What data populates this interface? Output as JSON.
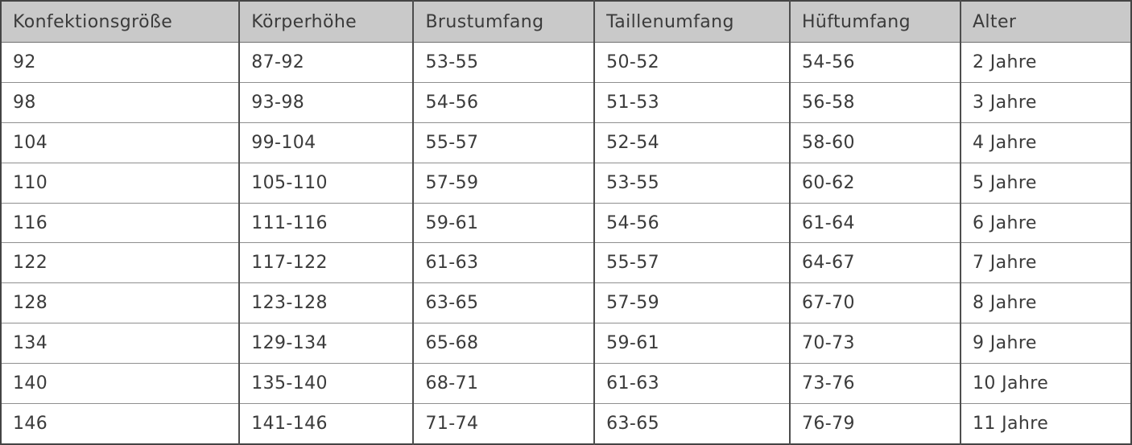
{
  "colors": {
    "header_bg": "#c9c9c9",
    "row_bg": "#ffffff",
    "text": "#3b3b3b",
    "border_outer": "#444444",
    "border_vertical": "#4d4d4d",
    "border_horizontal": "#8f8f8f"
  },
  "chart_data": {
    "type": "table",
    "columns": [
      "Konfektionsgröße",
      "Körperhöhe",
      "Brustumfang",
      "Taillenumfang",
      "Hüftumfang",
      "Alter"
    ],
    "rows": [
      [
        "92",
        "87-92",
        "53-55",
        "50-52",
        "54-56",
        "2 Jahre"
      ],
      [
        "98",
        "93-98",
        "54-56",
        "51-53",
        "56-58",
        "3 Jahre"
      ],
      [
        "104",
        "99-104",
        "55-57",
        "52-54",
        "58-60",
        "4 Jahre"
      ],
      [
        "110",
        "105-110",
        "57-59",
        "53-55",
        "60-62",
        "5 Jahre"
      ],
      [
        "116",
        "111-116",
        "59-61",
        "54-56",
        "61-64",
        "6 Jahre"
      ],
      [
        "122",
        "117-122",
        "61-63",
        "55-57",
        "64-67",
        "7 Jahre"
      ],
      [
        "128",
        "123-128",
        "63-65",
        "57-59",
        "67-70",
        "8 Jahre"
      ],
      [
        "134",
        "129-134",
        "65-68",
        "59-61",
        "70-73",
        "9 Jahre"
      ],
      [
        "140",
        "135-140",
        "68-71",
        "61-63",
        "73-76",
        "10 Jahre"
      ],
      [
        "146",
        "141-146",
        "71-74",
        "63-65",
        "76-79",
        "11 Jahre"
      ]
    ]
  }
}
